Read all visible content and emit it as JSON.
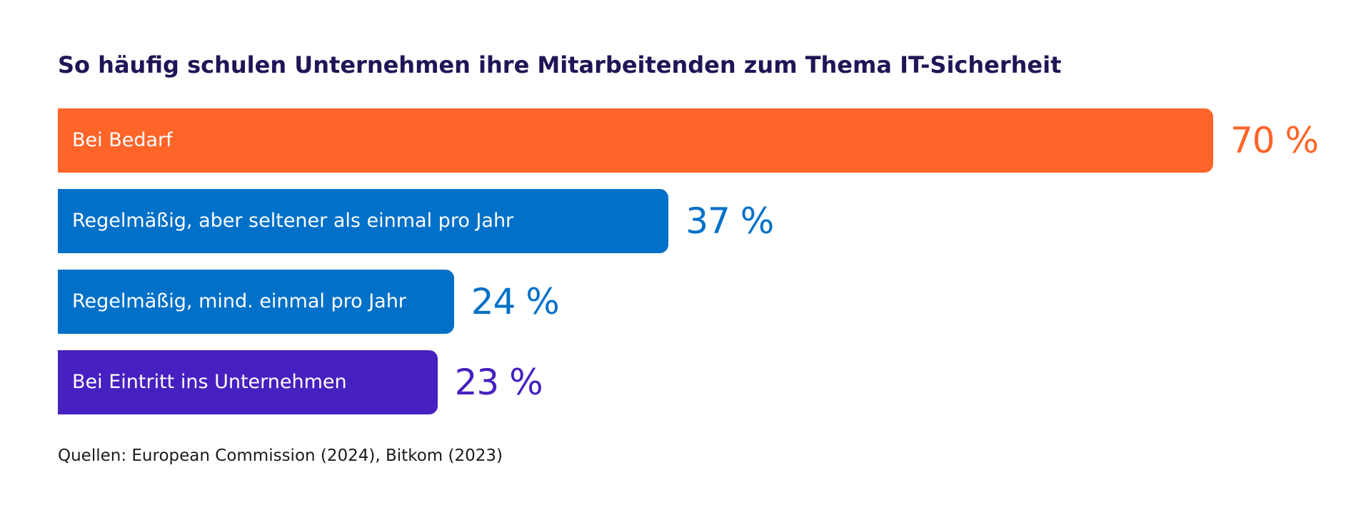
{
  "title": "So häufig schulen Unternehmen ihre Mitarbeitenden zum Thema IT-Sicherheit",
  "source": "Quellen: European Commission (2024), Bitkom (2023)",
  "chart_data": {
    "type": "bar",
    "orientation": "horizontal",
    "title": "So häufig schulen Unternehmen ihre Mitarbeitenden zum Thema IT-Sicherheit",
    "xlabel": "",
    "ylabel": "",
    "xlim": [
      0,
      70
    ],
    "grid": false,
    "legend": "none",
    "unit": "%",
    "categories": [
      "Bei Bedarf",
      "Regelmäßig, aber seltener als einmal pro Jahr",
      "Regelmäßig, mind. einmal pro Jahr",
      "Bei Eintritt ins Unternehmen"
    ],
    "values": [
      70,
      37,
      24,
      23
    ],
    "value_labels": [
      "70 %",
      "37 %",
      "24 %",
      "23 %"
    ],
    "colors": [
      "#ff6429",
      "#0070c8",
      "#0070c8",
      "#4620c0"
    ]
  }
}
